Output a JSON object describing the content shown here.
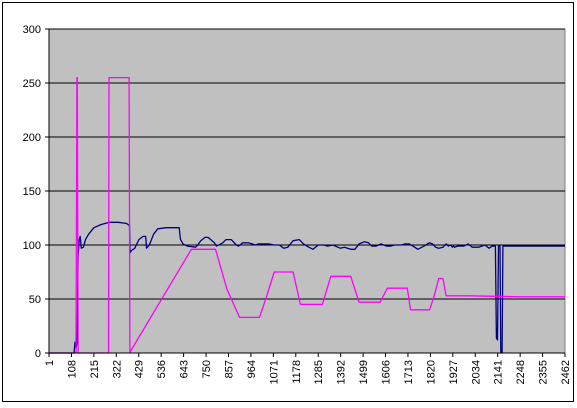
{
  "chart_data": {
    "type": "line",
    "title": "",
    "xlabel": "",
    "ylabel": "",
    "ylim": [
      0,
      300
    ],
    "yticks": [
      0,
      50,
      100,
      150,
      200,
      250,
      300
    ],
    "xlim": [
      1,
      2462
    ],
    "xticks": [
      1,
      108,
      215,
      322,
      429,
      536,
      643,
      750,
      857,
      964,
      1071,
      1178,
      1285,
      1392,
      1499,
      1606,
      1713,
      1820,
      1927,
      2034,
      2141,
      2248,
      2355,
      2462
    ],
    "grid": "horizontal",
    "plot_background": "#c0c0c0",
    "legend": "none",
    "series": [
      {
        "color": "#000080",
        "points": [
          [
            1,
            0
          ],
          [
            120,
            0
          ],
          [
            125,
            10
          ],
          [
            130,
            5
          ],
          [
            135,
            10
          ],
          [
            140,
            90
          ],
          [
            145,
            105
          ],
          [
            150,
            108
          ],
          [
            155,
            97
          ],
          [
            165,
            98
          ],
          [
            175,
            105
          ],
          [
            190,
            110
          ],
          [
            215,
            116
          ],
          [
            250,
            119
          ],
          [
            290,
            121
          ],
          [
            330,
            121
          ],
          [
            370,
            120
          ],
          [
            385,
            118
          ],
          [
            388,
            93
          ],
          [
            395,
            95
          ],
          [
            410,
            97
          ],
          [
            430,
            105
          ],
          [
            450,
            108
          ],
          [
            462,
            108
          ],
          [
            466,
            97
          ],
          [
            480,
            100
          ],
          [
            500,
            110
          ],
          [
            520,
            115
          ],
          [
            560,
            116
          ],
          [
            600,
            116
          ],
          [
            622,
            116
          ],
          [
            628,
            105
          ],
          [
            640,
            101
          ],
          [
            660,
            99
          ],
          [
            700,
            98
          ],
          [
            710,
            100
          ],
          [
            725,
            104
          ],
          [
            745,
            107
          ],
          [
            760,
            107
          ],
          [
            790,
            102
          ],
          [
            800,
            99
          ],
          [
            830,
            102
          ],
          [
            845,
            105
          ],
          [
            870,
            105
          ],
          [
            895,
            100
          ],
          [
            905,
            99
          ],
          [
            925,
            102
          ],
          [
            950,
            102
          ],
          [
            970,
            101
          ],
          [
            985,
            100
          ],
          [
            1000,
            101
          ],
          [
            1030,
            101
          ],
          [
            1050,
            101
          ],
          [
            1075,
            100
          ],
          [
            1100,
            100
          ],
          [
            1120,
            97
          ],
          [
            1140,
            98
          ],
          [
            1165,
            104
          ],
          [
            1195,
            105
          ],
          [
            1215,
            101
          ],
          [
            1240,
            98
          ],
          [
            1260,
            96
          ],
          [
            1285,
            100
          ],
          [
            1310,
            100
          ],
          [
            1330,
            99
          ],
          [
            1355,
            100
          ],
          [
            1390,
            97
          ],
          [
            1410,
            98
          ],
          [
            1440,
            96
          ],
          [
            1460,
            96
          ],
          [
            1480,
            101
          ],
          [
            1505,
            103
          ],
          [
            1525,
            102
          ],
          [
            1540,
            99
          ],
          [
            1560,
            99
          ],
          [
            1585,
            101
          ],
          [
            1610,
            99
          ],
          [
            1630,
            99
          ],
          [
            1650,
            100
          ],
          [
            1680,
            100
          ],
          [
            1700,
            101
          ],
          [
            1720,
            101
          ],
          [
            1745,
            98
          ],
          [
            1760,
            96
          ],
          [
            1790,
            99
          ],
          [
            1815,
            102
          ],
          [
            1830,
            101
          ],
          [
            1845,
            98
          ],
          [
            1860,
            97
          ],
          [
            1880,
            98
          ],
          [
            1895,
            101
          ],
          [
            1906,
            99
          ],
          [
            1915,
            100
          ],
          [
            1920,
            99
          ],
          [
            1925,
            98
          ],
          [
            1930,
            99
          ],
          [
            1935,
            98
          ],
          [
            1950,
            99
          ],
          [
            1980,
            99
          ],
          [
            2000,
            101
          ],
          [
            2020,
            98
          ],
          [
            2050,
            98
          ],
          [
            2080,
            100
          ],
          [
            2100,
            97
          ],
          [
            2115,
            99
          ],
          [
            2130,
            99
          ],
          [
            2135,
            14
          ],
          [
            2140,
            12
          ],
          [
            2145,
            99
          ],
          [
            2152,
            99
          ],
          [
            2156,
            0
          ],
          [
            2162,
            0
          ],
          [
            2166,
            99
          ],
          [
            2200,
            99
          ],
          [
            2462,
            99
          ]
        ]
      },
      {
        "color": "#ff00ff",
        "points": [
          [
            1,
            0
          ],
          [
            130,
            0
          ],
          [
            132,
            128
          ],
          [
            134,
            255
          ],
          [
            136,
            255
          ],
          [
            138,
            128
          ],
          [
            140,
            0
          ],
          [
            285,
            0
          ],
          [
            287,
            255
          ],
          [
            383,
            255
          ],
          [
            385,
            128
          ],
          [
            387,
            0
          ],
          [
            385,
            0
          ],
          [
            680,
            96
          ],
          [
            795,
            96
          ],
          [
            850,
            59
          ],
          [
            910,
            33
          ],
          [
            1005,
            33
          ],
          [
            1040,
            53
          ],
          [
            1075,
            75
          ],
          [
            1165,
            75
          ],
          [
            1200,
            45
          ],
          [
            1305,
            45
          ],
          [
            1345,
            71
          ],
          [
            1440,
            71
          ],
          [
            1480,
            47
          ],
          [
            1580,
            47
          ],
          [
            1615,
            60
          ],
          [
            1710,
            60
          ],
          [
            1725,
            40
          ],
          [
            1816,
            40
          ],
          [
            1838,
            53
          ],
          [
            1860,
            69
          ],
          [
            1880,
            69
          ],
          [
            1895,
            53
          ],
          [
            1920,
            53
          ],
          [
            1940,
            53
          ],
          [
            2000,
            53
          ],
          [
            2250,
            52
          ],
          [
            2462,
            52
          ]
        ]
      }
    ]
  }
}
